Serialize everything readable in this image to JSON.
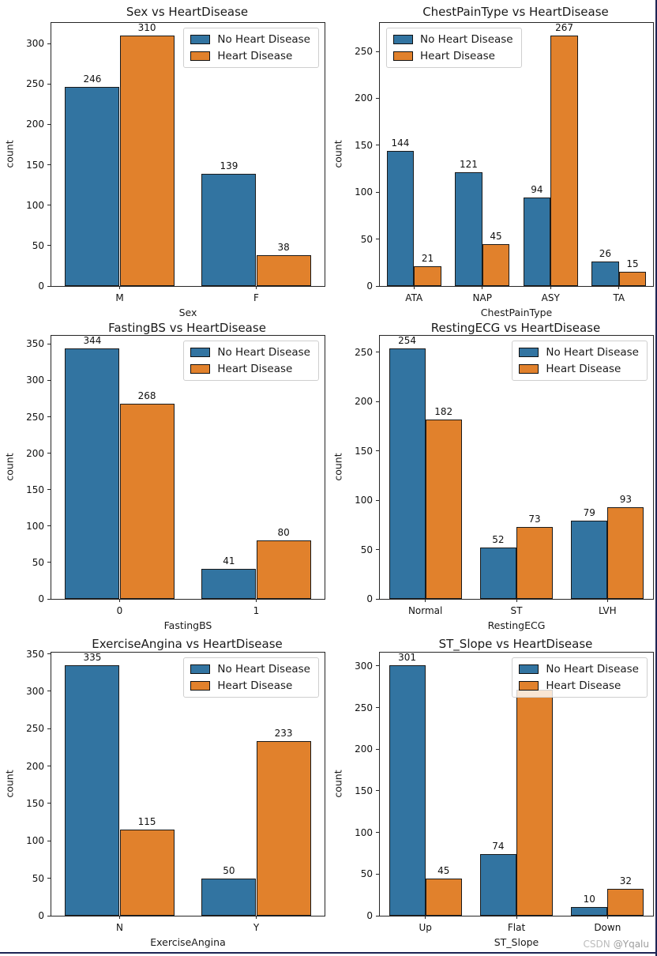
{
  "colors": {
    "series": [
      "#3274a1",
      "#e1812c"
    ],
    "bar_edge": "#1a1a1a",
    "frame_accent": "#1d2554"
  },
  "watermark": {
    "brand": "CSDN",
    "user": "@Yqalu"
  },
  "legend_labels": [
    "No Heart Disease",
    "Heart Disease"
  ],
  "chart_data": [
    {
      "type": "bar",
      "title": "Sex vs HeartDisease",
      "xlabel": "Sex",
      "ylabel": "count",
      "categories": [
        "M",
        "F"
      ],
      "series": [
        {
          "name": "No Heart Disease",
          "values": [
            246,
            139
          ]
        },
        {
          "name": "Heart Disease",
          "values": [
            310,
            38
          ]
        }
      ],
      "yticks": [
        0,
        50,
        100,
        150,
        200,
        250,
        300
      ],
      "ylim": [
        0,
        325.5
      ],
      "legend_position": "upper-right",
      "grid": false
    },
    {
      "type": "bar",
      "title": "ChestPainType vs HeartDisease",
      "xlabel": "ChestPainType",
      "ylabel": "count",
      "categories": [
        "ATA",
        "NAP",
        "ASY",
        "TA"
      ],
      "series": [
        {
          "name": "No Heart Disease",
          "values": [
            144,
            121,
            94,
            26
          ]
        },
        {
          "name": "Heart Disease",
          "values": [
            21,
            45,
            267,
            15
          ]
        }
      ],
      "yticks": [
        0,
        50,
        100,
        150,
        200,
        250
      ],
      "ylim": [
        0,
        280.35
      ],
      "legend_position": "upper-left",
      "grid": false
    },
    {
      "type": "bar",
      "title": "FastingBS vs HeartDisease",
      "xlabel": "FastingBS",
      "ylabel": "count",
      "categories": [
        "0",
        "1"
      ],
      "series": [
        {
          "name": "No Heart Disease",
          "values": [
            344,
            41
          ]
        },
        {
          "name": "Heart Disease",
          "values": [
            268,
            80
          ]
        }
      ],
      "yticks": [
        0,
        50,
        100,
        150,
        200,
        250,
        300,
        350
      ],
      "ylim": [
        0,
        361.2
      ],
      "legend_position": "upper-right",
      "grid": false
    },
    {
      "type": "bar",
      "title": "RestingECG vs HeartDisease",
      "xlabel": "RestingECG",
      "ylabel": "count",
      "categories": [
        "Normal",
        "ST",
        "LVH"
      ],
      "series": [
        {
          "name": "No Heart Disease",
          "values": [
            254,
            52,
            79
          ]
        },
        {
          "name": "Heart Disease",
          "values": [
            182,
            73,
            93
          ]
        }
      ],
      "yticks": [
        0,
        50,
        100,
        150,
        200,
        250
      ],
      "ylim": [
        0,
        266.7
      ],
      "legend_position": "upper-right",
      "grid": false
    },
    {
      "type": "bar",
      "title": "ExerciseAngina vs HeartDisease",
      "xlabel": "ExerciseAngina",
      "ylabel": "count",
      "categories": [
        "N",
        "Y"
      ],
      "series": [
        {
          "name": "No Heart Disease",
          "values": [
            335,
            50
          ]
        },
        {
          "name": "Heart Disease",
          "values": [
            115,
            233
          ]
        }
      ],
      "yticks": [
        0,
        50,
        100,
        150,
        200,
        250,
        300,
        350
      ],
      "ylim": [
        0,
        351.75
      ],
      "legend_position": "upper-right",
      "grid": false
    },
    {
      "type": "bar",
      "title": "ST_Slope vs HeartDisease",
      "xlabel": "ST_Slope",
      "ylabel": "count",
      "categories": [
        "Up",
        "Flat",
        "Down"
      ],
      "series": [
        {
          "name": "No Heart Disease",
          "values": [
            301,
            74,
            10
          ]
        },
        {
          "name": "Heart Disease",
          "values": [
            45,
            271,
            32
          ]
        }
      ],
      "yticks": [
        0,
        50,
        100,
        150,
        200,
        250,
        300
      ],
      "ylim": [
        0,
        316.05
      ],
      "legend_position": "upper-right",
      "grid": false,
      "hidden_value_labels": [
        [
          1,
          1
        ]
      ]
    }
  ]
}
